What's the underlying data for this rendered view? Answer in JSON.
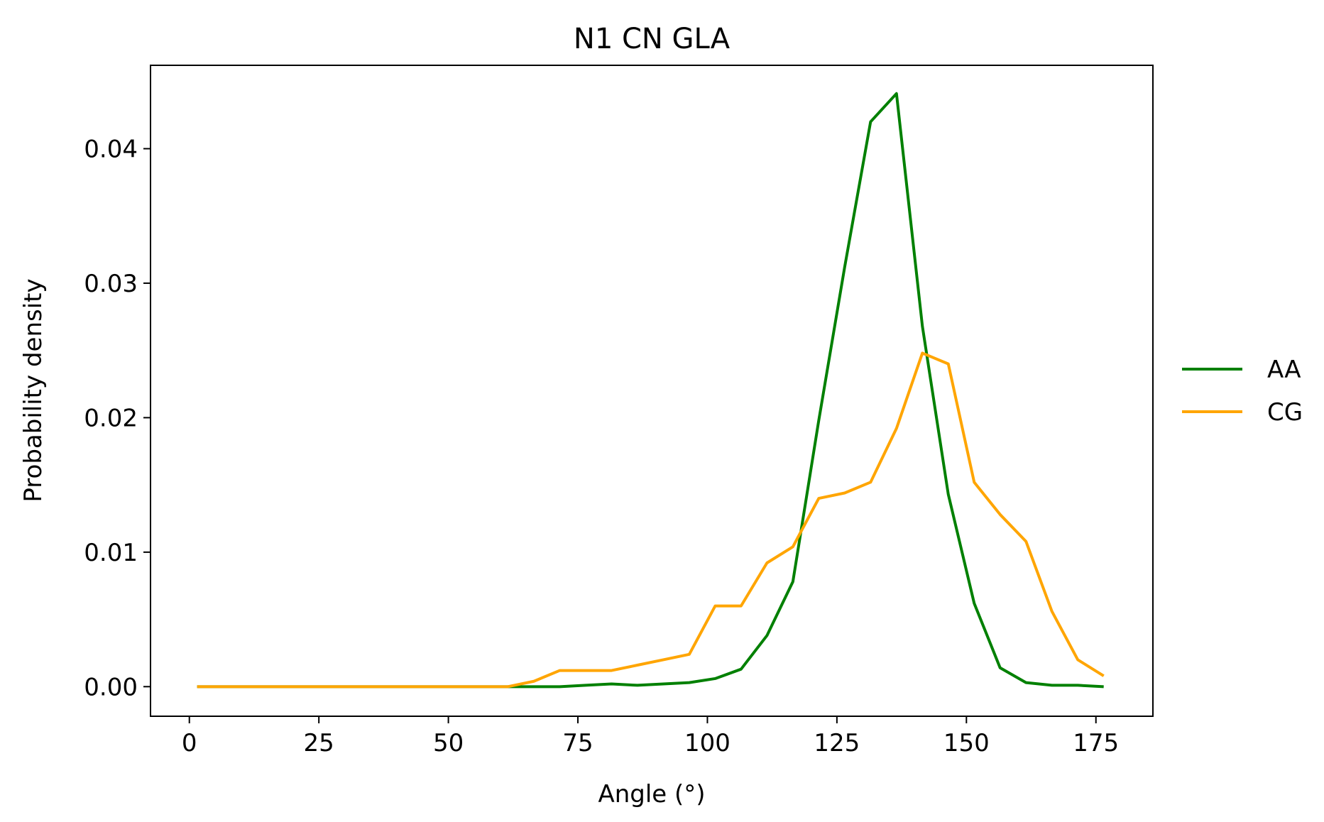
{
  "chart_data": {
    "type": "line",
    "title": "N1 CN GLA",
    "xlabel": "Angle (°)",
    "ylabel": "Probability density",
    "xlim": [
      -7.5,
      186
    ],
    "ylim": [
      -0.0022,
      0.0462
    ],
    "xticks": [
      0,
      25,
      50,
      75,
      100,
      125,
      150,
      175
    ],
    "xtick_labels": [
      "0",
      "25",
      "50",
      "75",
      "100",
      "125",
      "150",
      "175"
    ],
    "yticks": [
      0.0,
      0.01,
      0.02,
      0.03,
      0.04
    ],
    "ytick_labels": [
      "0.00",
      "0.01",
      "0.02",
      "0.03",
      "0.04"
    ],
    "grid": false,
    "legend_position": "outside right, center",
    "series": [
      {
        "name": "AA",
        "color": "#008000",
        "x": [
          1.5,
          6.5,
          11.5,
          16.5,
          21.5,
          26.5,
          31.5,
          36.5,
          41.5,
          46.5,
          51.5,
          56.5,
          61.5,
          66.5,
          71.5,
          76.5,
          81.5,
          86.5,
          91.5,
          96.5,
          101.5,
          106.5,
          111.5,
          116.5,
          121.5,
          126.5,
          131.5,
          136.5,
          141.5,
          146.5,
          151.5,
          156.5,
          161.5,
          166.5,
          171.5,
          176.5
        ],
        "y": [
          0.0,
          0.0,
          0.0,
          0.0,
          0.0,
          0.0,
          0.0,
          0.0,
          0.0,
          0.0,
          0.0,
          0.0,
          0.0,
          0.0,
          0.0,
          0.0001,
          0.0002,
          0.0001,
          0.0002,
          0.0003,
          0.0006,
          0.0013,
          0.0038,
          0.0078,
          0.0198,
          0.0312,
          0.042,
          0.0441,
          0.0268,
          0.0143,
          0.0062,
          0.0014,
          0.0003,
          0.0001,
          0.0001,
          0.0
        ]
      },
      {
        "name": "CG",
        "color": "#FFA500",
        "x": [
          1.5,
          6.5,
          11.5,
          16.5,
          21.5,
          26.5,
          31.5,
          36.5,
          41.5,
          46.5,
          51.5,
          56.5,
          61.5,
          66.5,
          71.5,
          76.5,
          81.5,
          86.5,
          91.5,
          96.5,
          101.5,
          106.5,
          111.5,
          116.5,
          121.5,
          126.5,
          131.5,
          136.5,
          141.5,
          146.5,
          151.5,
          156.5,
          161.5,
          166.5,
          171.5,
          176.5
        ],
        "y": [
          0.0,
          0.0,
          0.0,
          0.0,
          0.0,
          0.0,
          0.0,
          0.0,
          0.0,
          0.0,
          0.0,
          0.0,
          0.0,
          0.0004,
          0.0012,
          0.0012,
          0.0012,
          0.0016,
          0.002,
          0.0024,
          0.006,
          0.006,
          0.0092,
          0.0104,
          0.014,
          0.0144,
          0.0152,
          0.0192,
          0.0248,
          0.024,
          0.0152,
          0.0128,
          0.0108,
          0.0056,
          0.002,
          0.0008
        ]
      }
    ]
  }
}
